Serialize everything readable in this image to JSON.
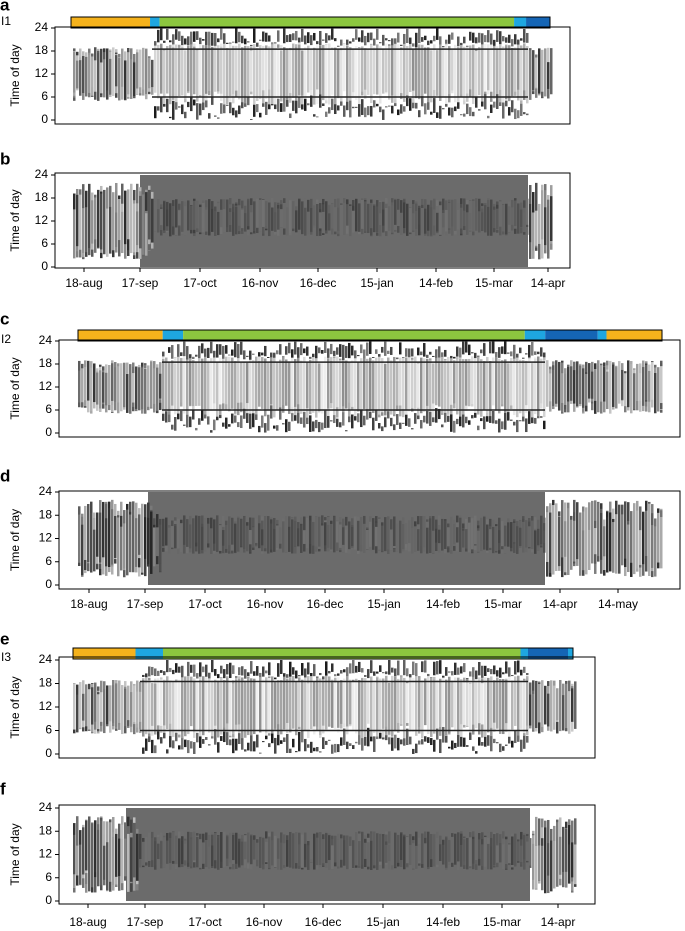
{
  "panels": [
    {
      "letter": "a",
      "subject": "I1",
      "y_label": "Time of day",
      "yticks": [
        0,
        6,
        12,
        18,
        24
      ]
    },
    {
      "letter": "b",
      "y_label": "Time of day",
      "yticks": [
        0,
        6,
        12,
        18,
        24
      ],
      "x_labels": [
        "18-aug",
        "17-sep",
        "17-oct",
        "16-nov",
        "16-dec",
        "15-jan",
        "14-feb",
        "15-mar",
        "14-apr"
      ]
    },
    {
      "letter": "c",
      "subject": "I2",
      "y_label": "Time of day",
      "yticks": [
        0,
        6,
        12,
        18,
        24
      ]
    },
    {
      "letter": "d",
      "y_label": "Time of day",
      "yticks": [
        0,
        6,
        12,
        18,
        24
      ],
      "x_labels": [
        "18-aug",
        "17-sep",
        "17-oct",
        "16-nov",
        "16-dec",
        "15-jan",
        "14-feb",
        "15-mar",
        "14-apr",
        "14-may"
      ]
    },
    {
      "letter": "e",
      "subject": "I3",
      "y_label": "Time of day",
      "yticks": [
        0,
        6,
        12,
        18,
        24
      ]
    },
    {
      "letter": "f",
      "y_label": "Time of day",
      "yticks": [
        0,
        6,
        12,
        18,
        24
      ],
      "x_labels": [
        "18-aug",
        "17-sep",
        "17-oct",
        "16-nov",
        "16-dec",
        "15-jan",
        "14-feb",
        "15-mar",
        "14-apr"
      ]
    }
  ]
}
